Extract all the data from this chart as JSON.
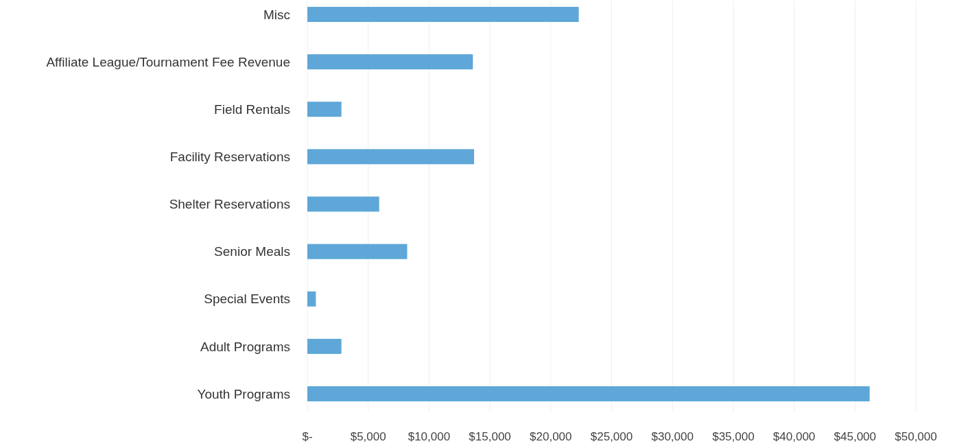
{
  "chart_data": {
    "type": "bar",
    "orientation": "horizontal",
    "categories": [
      "Misc",
      "Affiliate League/Tournament Fee Revenue",
      "Field Rentals",
      "Facility Reservations",
      "Shelter Reservations",
      "Senior Meals",
      "Special Events",
      "Adult Programs",
      "Youth Programs"
    ],
    "values": [
      22300,
      13600,
      2800,
      13700,
      5900,
      8200,
      700,
      2800,
      46200
    ],
    "color": "#5ea7d8",
    "xlim": [
      0,
      50000
    ],
    "xticks": [
      {
        "value": 0,
        "label": "$-"
      },
      {
        "value": 5000,
        "label": "$5,000"
      },
      {
        "value": 10000,
        "label": "$10,000"
      },
      {
        "value": 15000,
        "label": "$15,000"
      },
      {
        "value": 20000,
        "label": "$20,000"
      },
      {
        "value": 25000,
        "label": "$25,000"
      },
      {
        "value": 30000,
        "label": "$30,000"
      },
      {
        "value": 35000,
        "label": "$35,000"
      },
      {
        "value": 40000,
        "label": "$40,000"
      },
      {
        "value": 45000,
        "label": "$45,000"
      },
      {
        "value": 50000,
        "label": "$50,000"
      }
    ],
    "grid": "x"
  }
}
